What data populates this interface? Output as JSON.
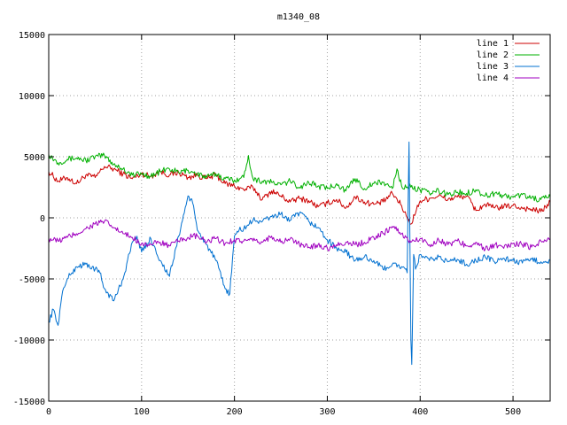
{
  "chart_data": {
    "type": "line",
    "title": "m1340_08",
    "xlabel": "",
    "ylabel": "",
    "xlim": [
      0,
      540
    ],
    "ylim": [
      -15000,
      15000
    ],
    "xticks": [
      0,
      100,
      200,
      300,
      400,
      500
    ],
    "yticks": [
      -15000,
      -10000,
      -5000,
      0,
      5000,
      10000,
      15000
    ],
    "grid": true,
    "legend": "top-right",
    "series": [
      {
        "name": "line 1",
        "color": "#cc0000",
        "x": [
          0,
          10,
          20,
          30,
          40,
          50,
          60,
          70,
          80,
          90,
          100,
          110,
          120,
          130,
          140,
          150,
          160,
          170,
          180,
          190,
          200,
          210,
          220,
          230,
          240,
          250,
          260,
          270,
          280,
          290,
          300,
          310,
          320,
          330,
          340,
          350,
          360,
          370,
          380,
          386,
          390,
          400,
          410,
          420,
          430,
          440,
          450,
          460,
          470,
          480,
          490,
          500,
          510,
          520,
          530,
          540
        ],
        "values": [
          3800,
          3000,
          3300,
          2800,
          3500,
          3300,
          4200,
          4000,
          3600,
          3200,
          3600,
          3400,
          3800,
          3500,
          3700,
          3300,
          3500,
          3200,
          3500,
          2800,
          2600,
          2300,
          2500,
          1500,
          2200,
          1800,
          1300,
          1600,
          1400,
          900,
          1200,
          1500,
          800,
          1700,
          1300,
          1100,
          1300,
          2000,
          1000,
          0,
          -500,
          1400,
          1600,
          1800,
          1500,
          1700,
          1800,
          600,
          1100,
          800,
          900,
          1000,
          800,
          700,
          500,
          1300
        ]
      },
      {
        "name": "line 2",
        "color": "#00b000",
        "x": [
          0,
          10,
          20,
          30,
          40,
          50,
          60,
          70,
          80,
          90,
          100,
          110,
          120,
          130,
          140,
          150,
          160,
          170,
          180,
          190,
          200,
          210,
          215,
          220,
          230,
          240,
          250,
          260,
          270,
          280,
          290,
          300,
          310,
          320,
          330,
          340,
          350,
          360,
          370,
          375,
          380,
          390,
          400,
          410,
          420,
          430,
          440,
          450,
          460,
          470,
          480,
          490,
          500,
          510,
          520,
          530,
          540
        ],
        "values": [
          5200,
          4500,
          4800,
          4900,
          4700,
          5000,
          5100,
          4400,
          4000,
          3500,
          3600,
          3400,
          3800,
          4000,
          3700,
          3900,
          3600,
          3300,
          3600,
          3200,
          3100,
          3300,
          5100,
          3200,
          3000,
          2900,
          2700,
          3000,
          2500,
          2900,
          2600,
          2400,
          2800,
          2200,
          3200,
          2400,
          2800,
          2900,
          2400,
          4000,
          2600,
          2500,
          2300,
          2000,
          2200,
          1900,
          2100,
          2000,
          2300,
          1800,
          2000,
          1800,
          1700,
          1900,
          1600,
          1500,
          1700
        ]
      },
      {
        "name": "line 3",
        "color": "#0070d0",
        "x": [
          0,
          5,
          10,
          15,
          20,
          25,
          30,
          40,
          50,
          55,
          60,
          70,
          80,
          90,
          95,
          100,
          110,
          120,
          130,
          140,
          150,
          155,
          160,
          170,
          180,
          190,
          195,
          200,
          205,
          210,
          220,
          230,
          240,
          250,
          260,
          270,
          280,
          290,
          300,
          310,
          320,
          330,
          340,
          350,
          360,
          370,
          380,
          386,
          388,
          390,
          391,
          393,
          395,
          400,
          410,
          420,
          430,
          440,
          450,
          460,
          470,
          480,
          490,
          500,
          510,
          520,
          530,
          540
        ],
        "values": [
          -8500,
          -7500,
          -8800,
          -6000,
          -5000,
          -4500,
          -4000,
          -3800,
          -4200,
          -4500,
          -5800,
          -6800,
          -5000,
          -2000,
          -1500,
          -2800,
          -1700,
          -3500,
          -4800,
          -1500,
          1800,
          1200,
          -1000,
          -2200,
          -3500,
          -5800,
          -6200,
          -1500,
          -1000,
          -900,
          -200,
          -300,
          100,
          300,
          -200,
          400,
          -300,
          -800,
          -1800,
          -2500,
          -2800,
          -3500,
          -3200,
          -3500,
          -4200,
          -3800,
          -4000,
          -4500,
          6200,
          -10000,
          -12000,
          -3000,
          -4200,
          -3000,
          -3500,
          -3200,
          -3600,
          -3400,
          -3800,
          -3500,
          -3200,
          -3600,
          -3300,
          -3500,
          -3700,
          -3400,
          -3600,
          -3500
        ]
      },
      {
        "name": "line 4",
        "color": "#a000c0",
        "x": [
          0,
          10,
          20,
          30,
          40,
          50,
          60,
          70,
          80,
          90,
          100,
          110,
          120,
          130,
          140,
          150,
          160,
          170,
          180,
          190,
          200,
          210,
          220,
          230,
          240,
          250,
          260,
          270,
          280,
          290,
          300,
          310,
          320,
          330,
          340,
          350,
          360,
          370,
          380,
          390,
          400,
          410,
          420,
          430,
          440,
          450,
          460,
          470,
          480,
          490,
          500,
          510,
          520,
          530,
          540
        ],
        "values": [
          -1700,
          -1900,
          -1600,
          -1300,
          -900,
          -500,
          -300,
          -800,
          -1300,
          -1600,
          -2100,
          -2200,
          -2000,
          -2300,
          -1900,
          -1600,
          -1500,
          -2000,
          -1700,
          -2100,
          -1800,
          -1900,
          -1900,
          -2000,
          -1500,
          -2000,
          -1700,
          -2200,
          -2400,
          -2200,
          -2500,
          -2200,
          -2000,
          -2200,
          -2000,
          -1600,
          -1300,
          -700,
          -1300,
          -2000,
          -1700,
          -2200,
          -1800,
          -2200,
          -1900,
          -2300,
          -2000,
          -2600,
          -2200,
          -2500,
          -2100,
          -2200,
          -2400,
          -1900,
          -1700
        ]
      }
    ]
  }
}
